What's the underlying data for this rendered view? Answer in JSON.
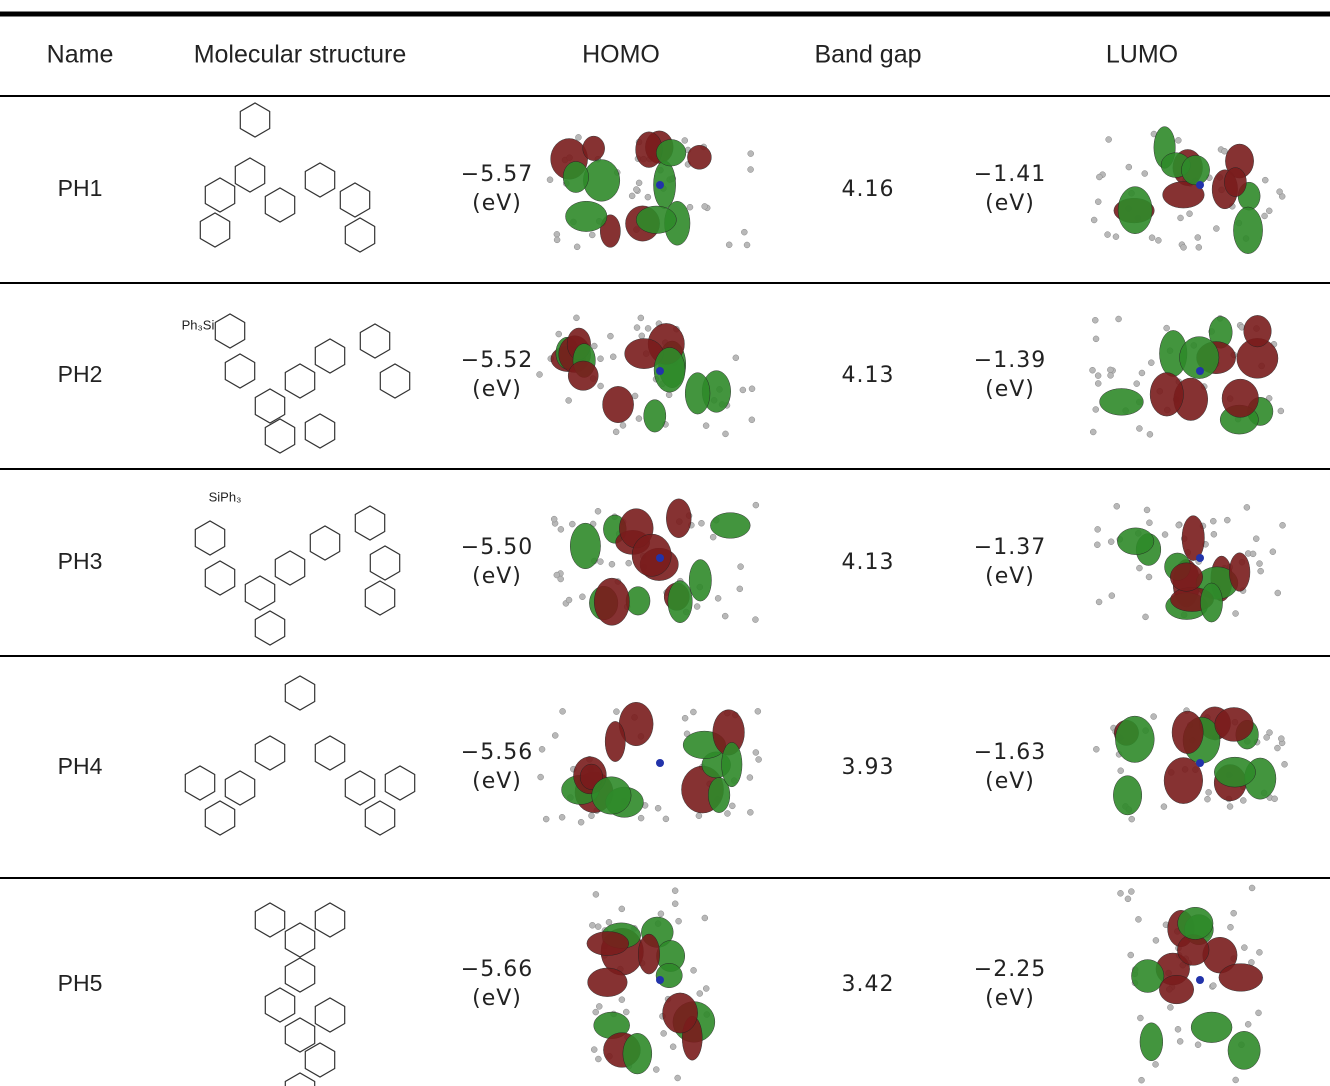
{
  "table": {
    "header": [
      "Name",
      "Molecular structure",
      "HOMO",
      "Band gap",
      "LUMO"
    ],
    "rows": [
      {
        "name": "PH1",
        "homo": "−5.57",
        "homo_unit": "(eV)",
        "band_gap": "4.16",
        "lumo": "−1.41",
        "lumo_unit": "(eV)"
      },
      {
        "name": "PH2",
        "structure_label": "Ph₃Si",
        "homo": "−5.52",
        "homo_unit": "(eV)",
        "band_gap": "4.13",
        "lumo": "−1.39",
        "lumo_unit": "(eV)"
      },
      {
        "name": "PH3",
        "structure_label": "SiPh₃",
        "homo": "−5.50",
        "homo_unit": "(eV)",
        "band_gap": "4.13",
        "lumo": "−1.37",
        "lumo_unit": "(eV)"
      },
      {
        "name": "PH4",
        "homo": "−5.56",
        "homo_unit": "(eV)",
        "band_gap": "3.93",
        "lumo": "−1.63",
        "lumo_unit": "(eV)"
      },
      {
        "name": "PH5",
        "homo": "−5.66",
        "homo_unit": "(eV)",
        "band_gap": "3.42",
        "lumo": "−2.25",
        "lumo_unit": "(eV)"
      }
    ]
  }
}
